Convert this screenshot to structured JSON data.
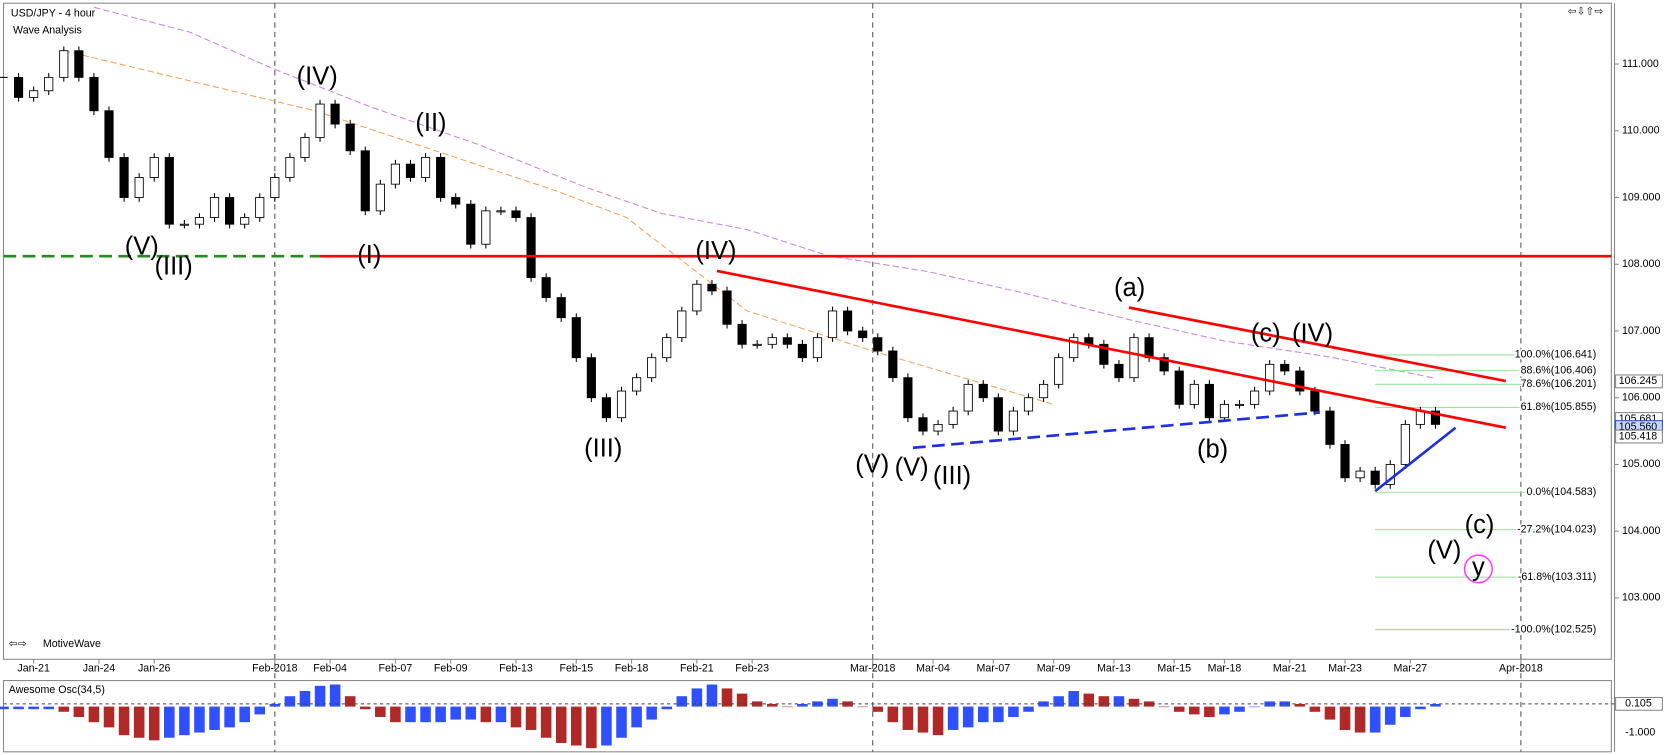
{
  "chart_data": [
    {
      "type": "candlestick",
      "title": "USD/JPY - 4 hour",
      "subtitle": "Wave Analysis",
      "footer": "MotiveWave",
      "x": [
        0,
        3,
        6,
        9,
        12,
        15,
        18,
        21,
        24,
        27,
        30,
        33,
        36,
        39,
        42,
        45,
        48,
        51,
        54,
        57,
        60,
        63,
        66,
        69,
        72,
        75,
        78,
        81,
        84,
        87,
        90,
        93,
        96,
        99,
        102,
        105,
        108,
        111,
        114,
        117,
        120,
        123,
        126,
        129,
        132,
        135,
        138,
        141,
        144,
        147,
        150,
        153,
        156,
        159,
        162,
        165,
        168,
        171,
        174,
        177,
        180,
        183,
        186,
        189,
        192,
        195,
        198,
        201,
        204,
        207,
        210,
        213,
        216,
        219,
        222,
        225,
        228,
        231,
        234,
        237,
        240,
        243,
        246,
        249,
        252,
        255,
        258,
        261,
        264,
        267,
        270,
        273,
        276,
        279,
        282,
        285
      ],
      "values": [
        110.8,
        110.5,
        110.6,
        110.8,
        111.2,
        110.8,
        110.3,
        109.6,
        109.0,
        109.3,
        109.6,
        108.6,
        108.6,
        108.7,
        109.0,
        108.6,
        108.7,
        109.0,
        109.3,
        109.6,
        109.9,
        110.4,
        110.1,
        109.7,
        108.8,
        109.2,
        109.5,
        109.3,
        109.6,
        109.0,
        108.9,
        108.3,
        108.8,
        108.8,
        108.7,
        107.8,
        107.5,
        107.2,
        106.6,
        106.0,
        105.7,
        106.1,
        106.3,
        106.6,
        106.9,
        107.3,
        107.7,
        107.6,
        107.1,
        106.8,
        106.8,
        106.9,
        106.8,
        106.6,
        106.9,
        107.3,
        107.0,
        106.9,
        106.7,
        106.3,
        105.7,
        105.5,
        105.6,
        105.8,
        106.2,
        106.0,
        105.5,
        105.8,
        106.0,
        106.2,
        106.6,
        106.9,
        106.8,
        106.5,
        106.3,
        106.9,
        106.6,
        106.4,
        105.9,
        106.2,
        105.7,
        105.9,
        105.9,
        106.1,
        106.5,
        106.4,
        106.1,
        105.8,
        105.3,
        104.8,
        104.9,
        104.7,
        105.0,
        105.6,
        105.8,
        105.6
      ],
      "up_color": "#ffffff",
      "down_color": "#000000",
      "xlim": [
        0,
        320
      ],
      "ylim": [
        102.08,
        111.88
      ],
      "xticks": [
        {
          "value": 6,
          "label": "Jan-21"
        },
        {
          "value": 19,
          "label": "Jan-24"
        },
        {
          "value": 30,
          "label": "Jan-26"
        },
        {
          "value": 54,
          "label": "Feb-2018"
        },
        {
          "value": 65,
          "label": "Feb-04"
        },
        {
          "value": 78,
          "label": "Feb-07"
        },
        {
          "value": 89,
          "label": "Feb-09"
        },
        {
          "value": 102,
          "label": "Feb-13"
        },
        {
          "value": 114,
          "label": "Feb-15"
        },
        {
          "value": 125,
          "label": "Feb-18"
        },
        {
          "value": 138,
          "label": "Feb-21"
        },
        {
          "value": 149,
          "label": "Feb-23"
        },
        {
          "value": 173,
          "label": "Mar-2018"
        },
        {
          "value": 185,
          "label": "Mar-04"
        },
        {
          "value": 197,
          "label": "Mar-07"
        },
        {
          "value": 209,
          "label": "Mar-09"
        },
        {
          "value": 221,
          "label": "Mar-13"
        },
        {
          "value": 233,
          "label": "Mar-15"
        },
        {
          "value": 243,
          "label": "Mar-18"
        },
        {
          "value": 256,
          "label": "Mar-21"
        },
        {
          "value": 267,
          "label": "Mar-23"
        },
        {
          "value": 280,
          "label": "Mar-27"
        },
        {
          "value": 302,
          "label": "Apr-2018"
        }
      ],
      "yticks": [
        {
          "value": 111,
          "label": "111.000"
        },
        {
          "value": 110,
          "label": "110.000"
        },
        {
          "value": 109,
          "label": "109.000"
        },
        {
          "value": 108,
          "label": "108.000"
        },
        {
          "value": 107,
          "label": "107.000"
        },
        {
          "value": 106,
          "label": "106.000"
        },
        {
          "value": 105,
          "label": "105.000"
        },
        {
          "value": 104,
          "label": "104.000"
        },
        {
          "value": 103,
          "label": "103.000"
        }
      ],
      "separators": [
        54,
        173,
        302
      ],
      "trendlines": [
        {
          "color": "#228b22",
          "dashed": true,
          "x": [
            0,
            63
          ],
          "values": [
            108.12,
            108.12
          ]
        },
        {
          "color": "#ff0000",
          "dashed": false,
          "x": [
            63,
            320
          ],
          "values": [
            108.12,
            108.12
          ]
        },
        {
          "color": "#ff0000",
          "dashed": false,
          "x": [
            142,
            299
          ],
          "values": [
            107.9,
            105.55
          ]
        },
        {
          "color": "#ff0000",
          "dashed": false,
          "x": [
            224,
            299
          ],
          "values": [
            107.35,
            106.25
          ]
        },
        {
          "color": "#1f2fe0",
          "dashed": true,
          "x": [
            181,
            262
          ],
          "values": [
            105.25,
            105.78
          ]
        },
        {
          "color": "#1f2fe0",
          "dashed": false,
          "x": [
            273,
            289
          ],
          "values": [
            104.6,
            105.55
          ]
        }
      ],
      "averages": [
        {
          "color": "#c88ad8",
          "x": [
            18,
            37,
            54,
            73,
            95,
            116,
            131,
            148,
            164,
            184,
            203,
            224,
            243,
            264,
            285
          ],
          "values": [
            111.85,
            111.48,
            110.92,
            110.36,
            109.78,
            109.15,
            108.76,
            108.52,
            108.13,
            107.89,
            107.57,
            107.17,
            106.85,
            106.61,
            106.29
          ]
        },
        {
          "color": "#f4a460",
          "x": [
            12,
            62,
            110,
            124,
            148,
            173,
            209
          ],
          "values": [
            111.2,
            110.3,
            109.1,
            108.7,
            107.3,
            106.7,
            105.9
          ]
        }
      ],
      "fib_x": [
        273,
        317
      ],
      "fib_color": "#98e098",
      "fibs": [
        {
          "value": 106.641,
          "label": "100.0%(106.641)"
        },
        {
          "value": 106.406,
          "label": "88.6%(106.406)"
        },
        {
          "value": 106.201,
          "label": "78.6%(106.201)"
        },
        {
          "value": 105.855,
          "label": "61.8%(105.855)"
        },
        {
          "value": 104.583,
          "label": "0.0%(104.583)"
        },
        {
          "value": 104.023,
          "label": "-27.2%(104.023)"
        },
        {
          "value": 103.311,
          "label": "-61.8%(103.311)"
        },
        {
          "value": 102.525,
          "label": "-100.0%(102.525)"
        }
      ],
      "price_tags": [
        106.245,
        105.681,
        {
          "value": 105.56,
          "label": "105.560"
        },
        105.418
      ],
      "annotations": [
        {
          "text": "(V)",
          "color": "#ff7f27"
        },
        {
          "text": "(III)",
          "color": "#228b22"
        },
        {
          "text": "(IV)",
          "color": "#228b22"
        },
        {
          "text": "(II)",
          "color": "#ff7f27"
        },
        {
          "text": "(I)",
          "color": "#ff7f27"
        },
        {
          "text": "(III)",
          "color": "#ff7f27"
        },
        {
          "text": "(IV)",
          "color": "#ff7f27"
        },
        {
          "text": "(V)",
          "color": "#ff7f27"
        },
        {
          "text": "(V)",
          "color": "#228b22"
        },
        {
          "text": "(III)",
          "color": "#2020c8"
        },
        {
          "text": "(a)",
          "color": "#228b22"
        },
        {
          "text": "(b)",
          "color": "#228b22"
        },
        {
          "text": "(c)",
          "color": "#228b22"
        },
        {
          "text": "(IV)",
          "color": "#2020c8"
        },
        {
          "text": "(c)",
          "color": "#7a1a7a"
        },
        {
          "text": "(V)",
          "color": "#2020c8"
        },
        {
          "text": "y",
          "color": "#ff40ff"
        }
      ]
    },
    {
      "type": "oscillator",
      "title": "Awesome Osc(34,5)",
      "x": [
        0,
        3,
        6,
        9,
        12,
        15,
        18,
        21,
        24,
        27,
        30,
        33,
        36,
        39,
        42,
        45,
        48,
        51,
        54,
        57,
        60,
        63,
        66,
        69,
        72,
        75,
        78,
        81,
        84,
        87,
        90,
        93,
        96,
        99,
        102,
        105,
        108,
        111,
        114,
        117,
        120,
        123,
        126,
        129,
        132,
        135,
        138,
        141,
        144,
        147,
        150,
        153,
        156,
        159,
        162,
        165,
        168,
        171,
        174,
        177,
        180,
        183,
        186,
        189,
        192,
        195,
        198,
        201,
        204,
        207,
        210,
        213,
        216,
        219,
        222,
        225,
        228,
        231,
        234,
        237,
        240,
        243,
        246,
        249,
        252,
        255,
        258,
        261,
        264,
        267,
        270,
        273,
        276,
        279,
        282,
        285
      ],
      "values": [
        -0.1,
        -0.1,
        -0.1,
        -0.1,
        -0.2,
        -0.4,
        -0.6,
        -0.8,
        -1.1,
        -1.2,
        -1.3,
        -1.2,
        -1.1,
        -1.0,
        -0.9,
        -0.8,
        -0.6,
        -0.3,
        0.1,
        0.4,
        0.6,
        0.8,
        0.85,
        0.4,
        -0.1,
        -0.4,
        -0.6,
        -0.6,
        -0.6,
        -0.6,
        -0.5,
        -0.5,
        -0.6,
        -0.6,
        -0.8,
        -0.9,
        -1.2,
        -1.4,
        -1.5,
        -1.6,
        -1.5,
        -1.2,
        -0.8,
        -0.5,
        -0.1,
        0.4,
        0.7,
        0.85,
        0.7,
        0.5,
        0.2,
        0.1,
        0.0,
        0.1,
        0.2,
        0.3,
        0.2,
        0.0,
        -0.2,
        -0.6,
        -0.9,
        -1.0,
        -1.1,
        -0.9,
        -0.8,
        -0.6,
        -0.6,
        -0.4,
        -0.2,
        0.2,
        0.4,
        0.6,
        0.5,
        0.4,
        0.4,
        0.3,
        0.2,
        0.0,
        -0.2,
        -0.3,
        -0.4,
        -0.3,
        -0.2,
        0.0,
        0.2,
        0.2,
        0.1,
        -0.2,
        -0.5,
        -0.9,
        -1.0,
        -1.0,
        -0.7,
        -0.4,
        -0.1,
        0.1
      ],
      "up_color": "#3050ff",
      "down_color": "#b02828",
      "ylim": [
        -1.66,
        0.88
      ],
      "yticks": [
        {
          "value": 0.105,
          "label": "0.105"
        },
        {
          "value": -1,
          "label": "-1.000"
        }
      ]
    }
  ]
}
